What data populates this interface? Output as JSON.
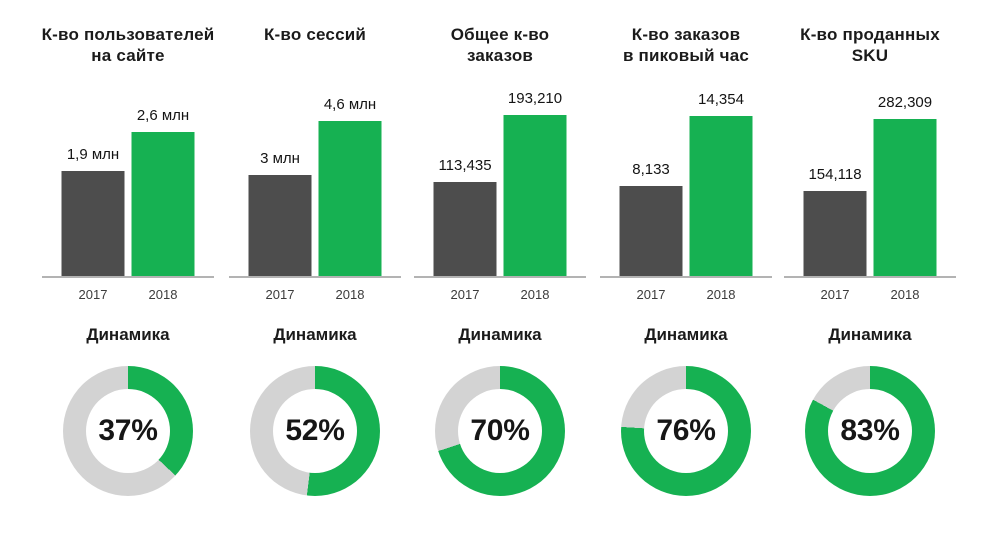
{
  "dynamics_title": "Динамика",
  "chart_data": {
    "type": "bar",
    "subtype": "kpi-columns-with-donut-gauges",
    "categories": [
      "2017",
      "2018"
    ],
    "grid": false,
    "legend_position": "none",
    "colors": {
      "bar_2017": "#4d4d4d",
      "bar_2018": "#16b152",
      "donut_fill": "#16b152",
      "donut_track": "#d3d3d3",
      "axis_line": "#b3b3b3",
      "text": "#1b1b1b"
    },
    "columns": [
      {
        "title_lines": [
          "К-во пользователей",
          "на сайте"
        ],
        "series": [
          {
            "name": "2017",
            "value": 1900000,
            "label": "1,9 млн"
          },
          {
            "name": "2018",
            "value": 2600000,
            "label": "2,6 млн"
          }
        ],
        "dynamics_pct": 37,
        "dynamics_label": "37%"
      },
      {
        "title_lines": [
          "К-во сессий",
          ""
        ],
        "series": [
          {
            "name": "2017",
            "value": 3000000,
            "label": "3 млн"
          },
          {
            "name": "2018",
            "value": 4600000,
            "label": "4,6 млн"
          }
        ],
        "dynamics_pct": 52,
        "dynamics_label": "52%"
      },
      {
        "title_lines": [
          "Общее к-во",
          "заказов"
        ],
        "series": [
          {
            "name": "2017",
            "value": 113435,
            "label": "113,435"
          },
          {
            "name": "2018",
            "value": 193210,
            "label": "193,210"
          }
        ],
        "dynamics_pct": 70,
        "dynamics_label": "70%"
      },
      {
        "title_lines": [
          "К-во заказов",
          "в пиковый час"
        ],
        "series": [
          {
            "name": "2017",
            "value": 8133,
            "label": "8,133"
          },
          {
            "name": "2018",
            "value": 14354,
            "label": "14,354"
          }
        ],
        "dynamics_pct": 76,
        "dynamics_label": "76%"
      },
      {
        "title_lines": [
          "К-во проданных",
          "SKU"
        ],
        "series": [
          {
            "name": "2017",
            "value": 154118,
            "label": "154,118"
          },
          {
            "name": "2018",
            "value": 282309,
            "label": "282,309"
          }
        ],
        "dynamics_pct": 83,
        "dynamics_label": "83%"
      }
    ]
  }
}
